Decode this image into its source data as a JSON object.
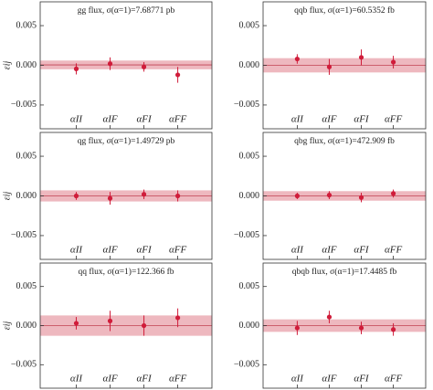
{
  "chart_data": [
    {
      "type": "errorbar",
      "title": "gg flux,  σ(α=1)=7.68771 pb",
      "ylabel": "εij",
      "categories": [
        "αII",
        "αIF",
        "αFI",
        "αFF"
      ],
      "values": [
        -0.00045,
        0.0002,
        -0.0002,
        -0.0012
      ],
      "errors": [
        0.0007,
        0.0008,
        0.0006,
        0.001
      ],
      "band": [
        -0.0005,
        0.0006
      ],
      "color": "#d01c3a",
      "band_color": "#e8a0aa",
      "ylim": [
        -0.008,
        0.008
      ],
      "yticks": [
        0.005,
        {
          "value": 0,
          "label": "0.000"
        },
        {
          "value": -0.005,
          "label": "−0.005"
        }
      ]
    },
    {
      "type": "errorbar",
      "title": "qqb flux,  σ(α=1)=60.5352 fb",
      "categories": [
        "αII",
        "αIF",
        "αFI",
        "αFF"
      ],
      "values": [
        0.0008,
        -0.0002,
        0.001,
        0.0004
      ],
      "errors": [
        0.0006,
        0.001,
        0.001,
        0.0008
      ],
      "band": [
        -0.0009,
        0.0009
      ],
      "color": "#d01c3a",
      "band_color": "#e8a0aa",
      "ylim": [
        -0.008,
        0.008
      ],
      "yticks": [
        0.005,
        {
          "value": 0,
          "label": "0.000"
        },
        {
          "value": -0.005,
          "label": "−0.005"
        }
      ]
    },
    {
      "type": "errorbar",
      "title": "qg flux,  σ(α=1)=1.49729 pb",
      "ylabel": "εij",
      "categories": [
        "αII",
        "αIF",
        "αFI",
        "αFF"
      ],
      "values": [
        0,
        -0.0003,
        0.0002,
        0
      ],
      "errors": [
        0.0005,
        0.0008,
        0.0006,
        0.0007
      ],
      "band": [
        -0.0007,
        0.0007
      ],
      "color": "#d01c3a",
      "band_color": "#e8a0aa",
      "ylim": [
        -0.008,
        0.008
      ],
      "yticks": [
        0.005,
        {
          "value": 0,
          "label": "0.000"
        },
        {
          "value": -0.005,
          "label": "−0.005"
        }
      ]
    },
    {
      "type": "errorbar",
      "title": "qbg flux,  σ(α=1)=472.909 fb",
      "categories": [
        "αII",
        "αIF",
        "αFI",
        "αFF"
      ],
      "values": [
        0,
        0.0001,
        -0.0002,
        0.0003
      ],
      "errors": [
        0.0004,
        0.0005,
        0.0006,
        0.0005
      ],
      "band": [
        -0.0006,
        0.0006
      ],
      "color": "#d01c3a",
      "band_color": "#e8a0aa",
      "ylim": [
        -0.008,
        0.008
      ],
      "yticks": [
        0.005,
        {
          "value": 0,
          "label": "0.000"
        },
        {
          "value": -0.005,
          "label": "−0.005"
        }
      ]
    },
    {
      "type": "errorbar",
      "title": "qq flux,  σ(α=1)=122.366 fb",
      "ylabel": "εij",
      "categories": [
        "αII",
        "αIF",
        "αFI",
        "αFF"
      ],
      "values": [
        0.0003,
        0.0006,
        0,
        0.001
      ],
      "errors": [
        0.0008,
        0.0013,
        0.0013,
        0.0012
      ],
      "band": [
        -0.0013,
        0.0013
      ],
      "color": "#d01c3a",
      "band_color": "#e8a0aa",
      "ylim": [
        -0.008,
        0.008
      ],
      "yticks": [
        0.005,
        {
          "value": 0,
          "label": "0.000"
        },
        {
          "value": -0.005,
          "label": "−0.005"
        }
      ]
    },
    {
      "type": "errorbar",
      "title": "qbqb flux,  σ(α=1)=17.4485 fb",
      "categories": [
        "αII",
        "αIF",
        "αFI",
        "αFF"
      ],
      "values": [
        -0.0003,
        0.0011,
        -0.0003,
        -0.0005
      ],
      "errors": [
        0.0009,
        0.0008,
        0.0008,
        0.0008
      ],
      "band": [
        -0.0008,
        0.0008
      ],
      "color": "#d01c3a",
      "band_color": "#e8a0aa",
      "ylim": [
        -0.008,
        0.008
      ],
      "yticks": [
        0.005,
        {
          "value": 0,
          "label": "0.000"
        },
        {
          "value": -0.005,
          "label": "−0.005"
        }
      ]
    }
  ]
}
